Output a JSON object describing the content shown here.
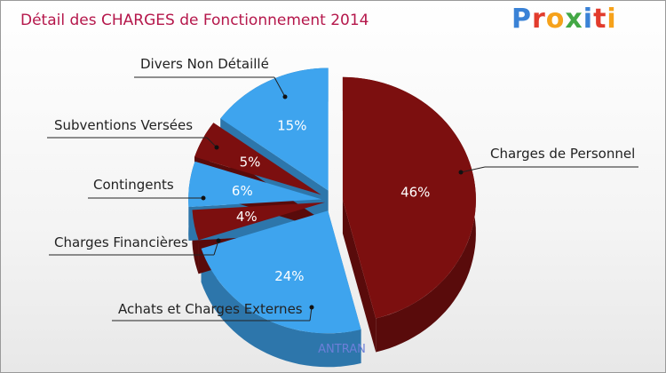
{
  "chart_data": {
    "type": "pie",
    "title": "Détail des CHARGES de Fonctionnement 2014",
    "subtitle": "ANTRAN",
    "slices": [
      {
        "label": "Charges de Personnel",
        "value": 46,
        "value_label": "46%",
        "color": "#7c0f0f"
      },
      {
        "label": "Achats et Charges Externes",
        "value": 24,
        "value_label": "24%",
        "color": "#3ea4ee"
      },
      {
        "label": "Charges Financières",
        "value": 4,
        "value_label": "4%",
        "color": "#7c0f0f"
      },
      {
        "label": "Contingents",
        "value": 6,
        "value_label": "6%",
        "color": "#3ea4ee"
      },
      {
        "label": "Subventions Versées",
        "value": 5,
        "value_label": "5%",
        "color": "#7c0f0f"
      },
      {
        "label": "Divers Non Détaillé",
        "value": 15,
        "value_label": "15%",
        "color": "#3ea4ee"
      }
    ]
  },
  "logo": {
    "letters": [
      "P",
      "r",
      "o",
      "x",
      "i",
      "t",
      "i"
    ],
    "colors": [
      "#3a82d6",
      "#e23b2c",
      "#f6a21b",
      "#43a845",
      "#3a82d6",
      "#e23b2c",
      "#f6a21b"
    ]
  }
}
